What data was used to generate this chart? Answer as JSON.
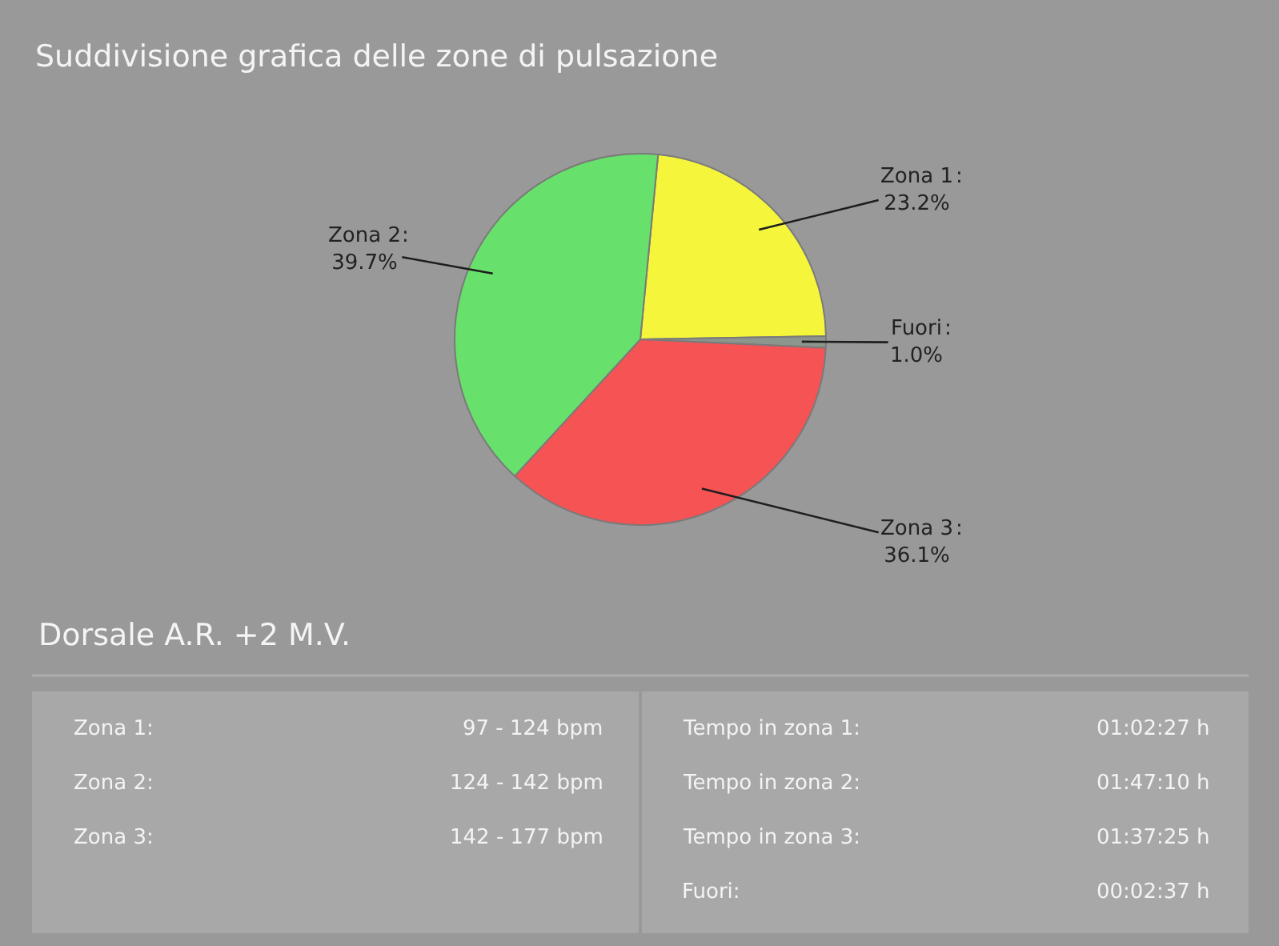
{
  "chart_data": {
    "type": "pie",
    "title": "Suddivisione grafica delle zone di pulsazione",
    "categories": [
      "Zona 1",
      "Fuori",
      "Zona 3",
      "Zona 2"
    ],
    "values": [
      23.2,
      1.0,
      36.1,
      39.7
    ],
    "colors": [
      "#f5f53c",
      "#8c968c",
      "#f65354",
      "#68e06c"
    ],
    "value_labels": [
      "23.2%",
      "1.0%",
      "36.1%",
      "39.7%"
    ],
    "annotations": [
      "Dorsale A.R. +2 M.V.",
      "Zona 1:",
      "97 - 124 bpm",
      "Zona 2:",
      "124 - 142 bpm",
      "Zona 3:",
      "142 - 177 bpm",
      "Tempo in zona 1:",
      "01:02:27 h",
      "Tempo in zona 2:",
      "01:47:10 h",
      "Tempo in zona 3:",
      "01:37:25 h",
      "Fuori:",
      "00:02:37 h",
      ":"
    ]
  }
}
